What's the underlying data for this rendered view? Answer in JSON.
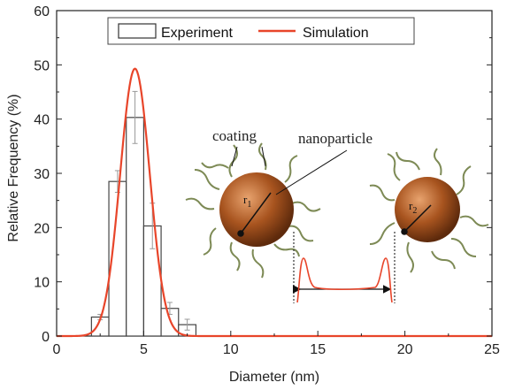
{
  "chart_data": {
    "type": "bar",
    "xlabel": "Diameter (nm)",
    "ylabel": "Relative Frequency (%)",
    "xlim": [
      0,
      25
    ],
    "ylim": [
      0,
      60
    ],
    "xticks": [
      "0",
      "5",
      "10",
      "15",
      "20",
      "25"
    ],
    "yticks": [
      "0",
      "10",
      "20",
      "30",
      "40",
      "50",
      "60"
    ],
    "grid": false,
    "legend_position": "top",
    "legend": [
      "Experiment",
      "Simulation"
    ],
    "bars": {
      "name": "Experiment",
      "bin_width": 1,
      "centers": [
        2.5,
        3.5,
        4.5,
        5.5,
        6.5,
        7.5
      ],
      "values": [
        3.5,
        28.5,
        40.3,
        20.3,
        5.1,
        2.1
      ],
      "errors": [
        0.5,
        2.0,
        4.8,
        4.2,
        1.1,
        1.0
      ]
    },
    "curve": {
      "name": "Simulation",
      "type": "gaussian",
      "peak_x": 4.5,
      "peak_y": 49.3,
      "sigma": 0.85,
      "color": "#e8452a"
    },
    "annotations": {
      "coating": "coating",
      "nanoparticle": "nanoparticle",
      "r1": "r",
      "r1_sub": "1",
      "r2": "r",
      "r2_sub": "2"
    },
    "colors": {
      "particle": "#a8541f",
      "coating": "#7d8a55",
      "simulation": "#e8452a"
    }
  }
}
